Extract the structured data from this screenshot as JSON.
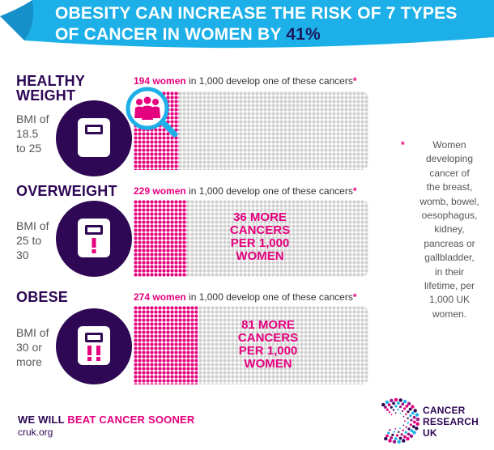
{
  "header": {
    "title_main": "OBESITY CAN INCREASE THE RISK OF 7 TYPES OF CANCER IN WOMEN BY ",
    "title_highlight": "41%",
    "banner_color": "#1db0e8"
  },
  "groups": [
    {
      "label_line1": "HEALTHY",
      "label_line2": "WEIGHT",
      "bmi_lines": [
        "BMI of",
        "18.5",
        "to 25"
      ],
      "count": "194 women",
      "caption_rest": " in 1,000 develop one of these cancers",
      "asterisk": "*",
      "value_per_1000": 194,
      "icon": "scale-icon"
    },
    {
      "label_line1": "OVERWEIGHT",
      "bmi_lines": [
        "BMI of",
        "25 to",
        "30"
      ],
      "count": "229 women",
      "caption_rest": " in 1,000 develop one of these cancers",
      "asterisk": "*",
      "value_per_1000": 229,
      "more_lines": [
        "36 MORE",
        "CANCERS",
        "PER 1,000",
        "WOMEN"
      ],
      "icon": "scale-warning-icon"
    },
    {
      "label_line1": "OBESE",
      "bmi_lines": [
        "BMI of",
        "30 or",
        "more"
      ],
      "count": "274 women",
      "caption_rest": " in 1,000 develop one of these cancers",
      "asterisk": "*",
      "value_per_1000": 274,
      "more_lines": [
        "81 MORE",
        "CANCERS",
        "PER 1,000",
        "WOMEN"
      ],
      "icon": "scale-double-warning-icon"
    }
  ],
  "footnote": {
    "asterisk": "*",
    "lines": [
      "Women",
      "developing",
      "cancer of",
      "the breast,",
      "womb, bowel,",
      "oesophagus,",
      "kidney,",
      "pancreas or",
      "gallbladder,",
      "in their",
      "lifetime, per",
      "1,000 UK",
      "women."
    ]
  },
  "footer": {
    "tagline_pre": "WE WILL ",
    "tagline_em": "BEAT CANCER SOONER",
    "site": "cruk.org"
  },
  "logo": {
    "lines": [
      "CANCER",
      "RESEARCH",
      "UK"
    ]
  },
  "colors": {
    "pink": "#e5007d",
    "purple": "#2e0854",
    "blue": "#1db0e8",
    "grey_dot": "#cfcfcf"
  }
}
